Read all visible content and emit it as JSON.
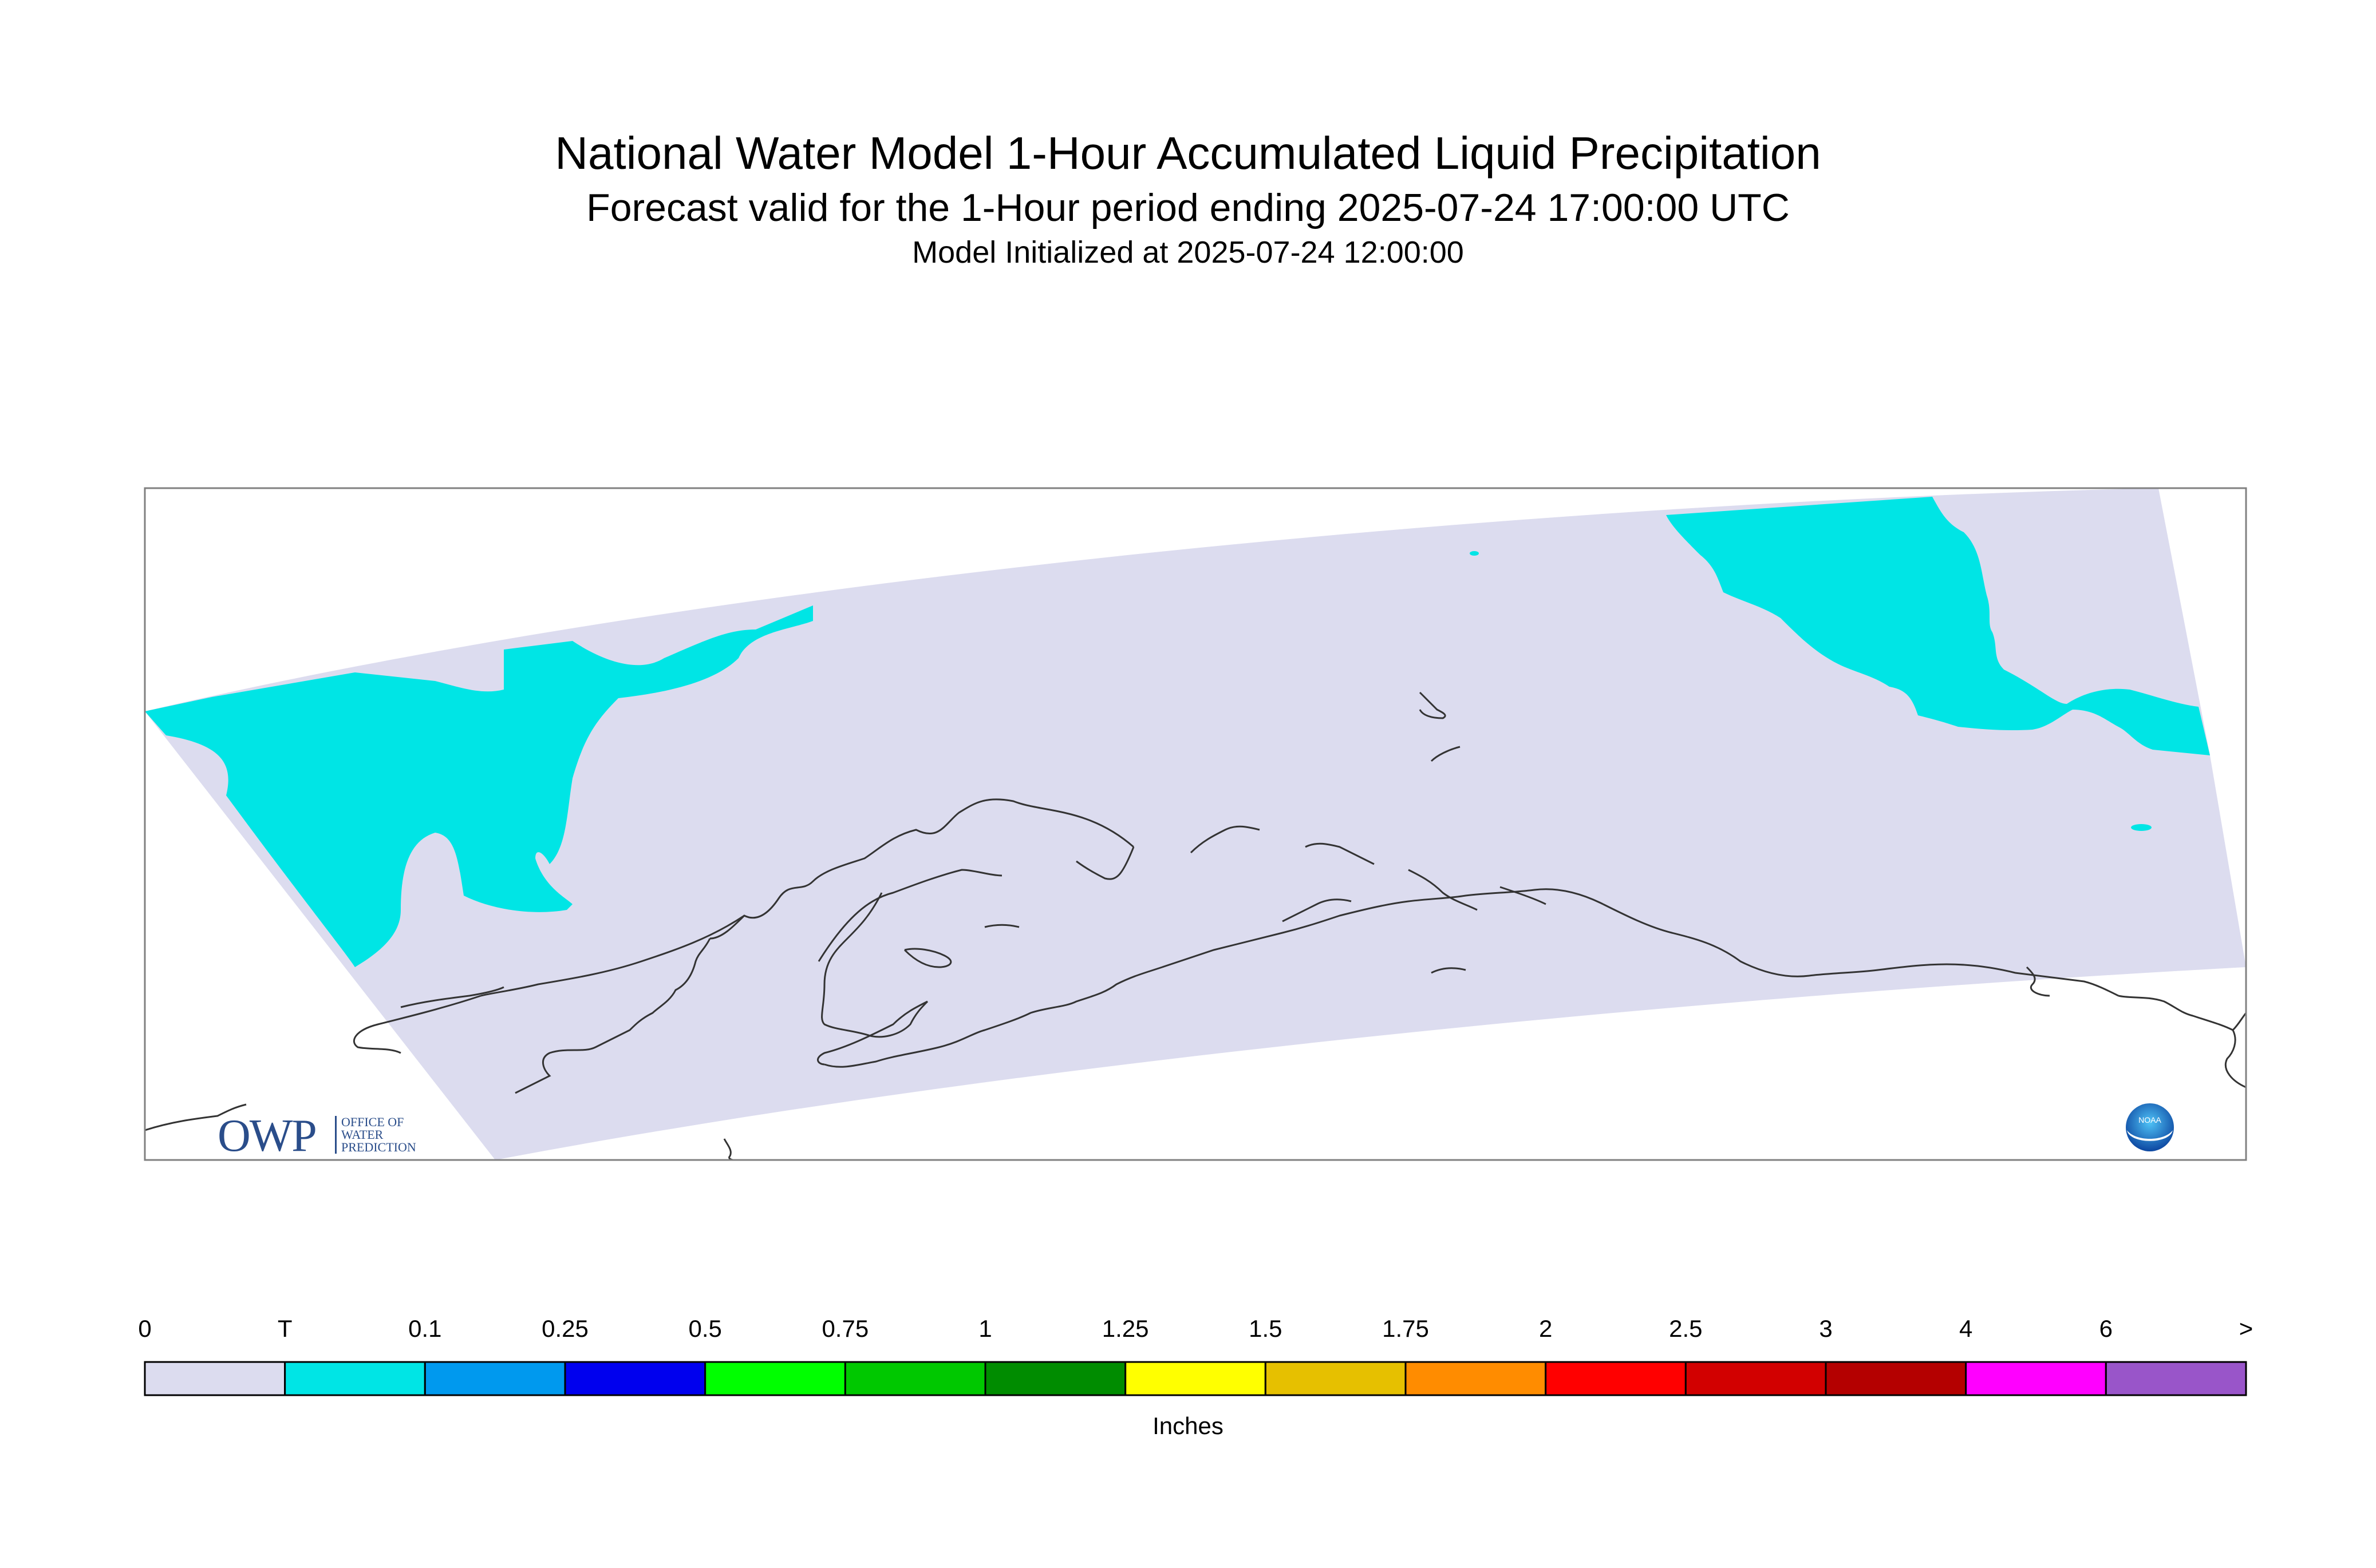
{
  "title": "National Water Model 1-Hour Accumulated Liquid Precipitation",
  "subtitle": "Forecast valid for the 1-Hour period ending 2025-07-24 17:00:00 UTC",
  "init_line": "Model Initialized at 2025-07-24 12:00:00",
  "legend": {
    "units": "Inches",
    "ticks": [
      "0",
      "T",
      "0.1",
      "0.25",
      "0.5",
      "0.75",
      "1",
      "1.25",
      "1.5",
      "1.75",
      "2",
      "2.5",
      "3",
      "4",
      "6",
      ">"
    ],
    "colors": [
      "#dcdcef",
      "#00e5e5",
      "#0099ee",
      "#0000ee",
      "#00ff00",
      "#00c800",
      "#008c00",
      "#ffff00",
      "#e6c000",
      "#ff8c00",
      "#ff0000",
      "#d20000",
      "#b40000",
      "#ff00ff",
      "#9955c9"
    ]
  },
  "map": {
    "domain_color": "#dcdcef",
    "precip_color": "#00e5e5",
    "coast_color": "#333333"
  },
  "logos": {
    "owp_letters": "OWP",
    "owp_lines": [
      "OFFICE OF",
      "WATER",
      "PREDICTION"
    ],
    "noaa_text": "NOAA"
  }
}
